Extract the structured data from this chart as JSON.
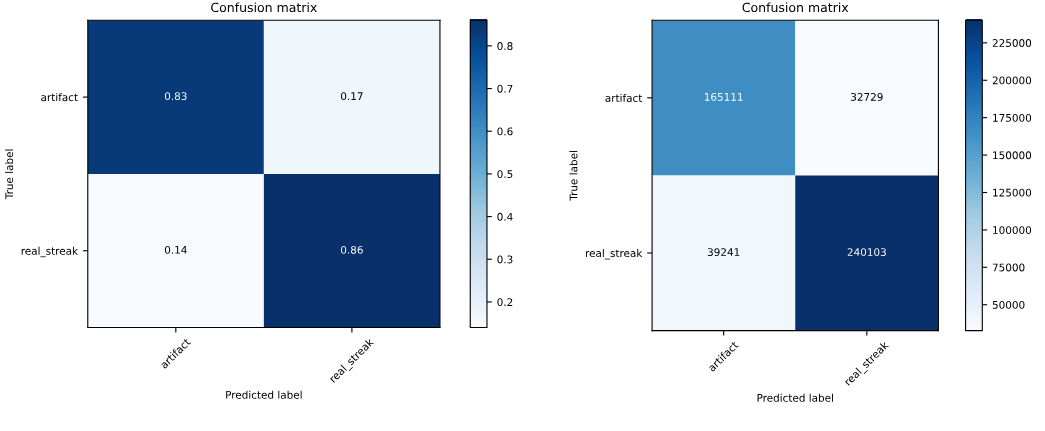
{
  "chart_data": [
    {
      "type": "heatmap",
      "title": "Confusion matrix",
      "xlabel": "Predicted label",
      "ylabel": "True label",
      "categories": [
        "artifact",
        "real_streak"
      ],
      "y_categories": [
        "artifact",
        "real_streak"
      ],
      "cells": [
        [
          0.83,
          0.17
        ],
        [
          0.14,
          0.86
        ]
      ],
      "clim": [
        0.14,
        0.86
      ],
      "cticks": [
        0.2,
        0.3,
        0.4,
        0.5,
        0.6,
        0.7,
        0.8
      ],
      "data_labels": true
    },
    {
      "type": "heatmap",
      "title": "Confusion matrix",
      "xlabel": "Predicted label",
      "ylabel": "True label",
      "categories": [
        "artifact",
        "real_streak"
      ],
      "y_categories": [
        "artifact",
        "real_streak"
      ],
      "cells": [
        [
          165111,
          32729
        ],
        [
          39241,
          240103
        ]
      ],
      "clim": [
        32729,
        240103
      ],
      "cticks": [
        50000,
        75000,
        100000,
        125000,
        150000,
        175000,
        200000,
        225000
      ],
      "data_labels": true
    }
  ]
}
